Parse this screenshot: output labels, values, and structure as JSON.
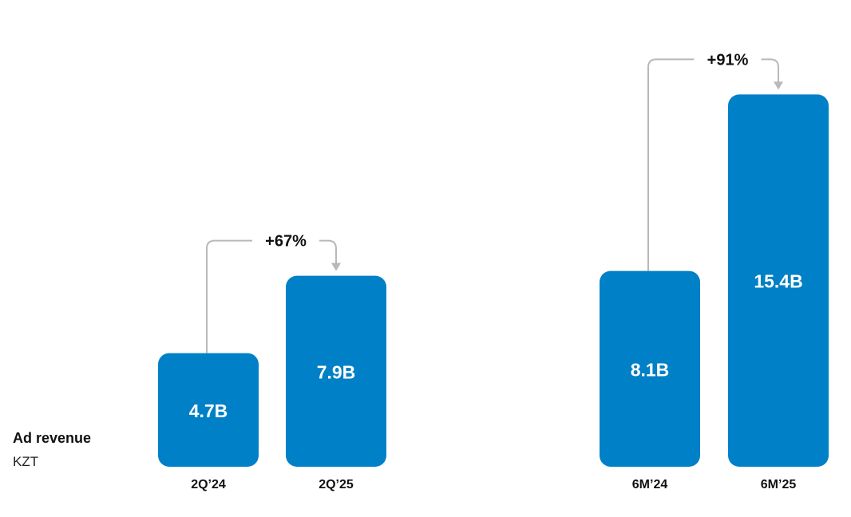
{
  "metric": {
    "title": "Ad revenue",
    "unit": "KZT"
  },
  "colors": {
    "bar": "#0080C6",
    "connector": "#B9B9B9",
    "value_text": "#FFFFFF",
    "axis_text": "#111111"
  },
  "chart_data": [
    {
      "type": "bar",
      "categories": [
        "2Q’24",
        "2Q’25"
      ],
      "values": [
        4.7,
        7.9
      ],
      "value_labels": [
        "4.7B",
        "7.9B"
      ],
      "change_label": "+67%",
      "ylabel": "Ad revenue",
      "unit": "KZT"
    },
    {
      "type": "bar",
      "categories": [
        "6M’24",
        "6M’25"
      ],
      "values": [
        8.1,
        15.4
      ],
      "value_labels": [
        "8.1B",
        "15.4B"
      ],
      "change_label": "+91%",
      "ylabel": "Ad revenue",
      "unit": "KZT"
    }
  ]
}
